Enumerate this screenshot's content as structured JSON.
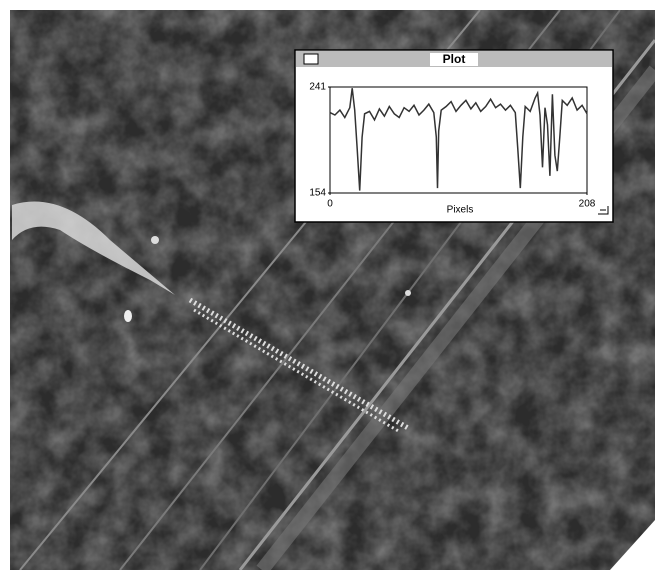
{
  "window": {
    "title": "Plot"
  },
  "chart_data": {
    "type": "line",
    "x_label": "Pixels",
    "x": [
      0,
      4,
      8,
      12,
      16,
      18,
      20,
      22,
      24,
      26,
      28,
      32,
      36,
      40,
      44,
      48,
      52,
      56,
      60,
      64,
      68,
      72,
      76,
      80,
      84,
      86,
      87,
      88,
      90,
      94,
      98,
      102,
      106,
      110,
      114,
      118,
      122,
      126,
      130,
      134,
      138,
      142,
      146,
      150,
      152,
      154,
      156,
      158,
      162,
      166,
      168,
      170,
      172,
      174,
      176,
      178,
      180,
      182,
      184,
      186,
      188,
      192,
      196,
      200,
      204,
      208
    ],
    "values": [
      220,
      218,
      222,
      216,
      224,
      240,
      222,
      190,
      156,
      200,
      219,
      221,
      214,
      223,
      217,
      225,
      219,
      216,
      224,
      221,
      226,
      218,
      222,
      227,
      220,
      200,
      158,
      205,
      222,
      225,
      229,
      221,
      226,
      230,
      223,
      228,
      221,
      225,
      231,
      224,
      227,
      222,
      226,
      220,
      190,
      158,
      200,
      225,
      221,
      232,
      236,
      218,
      175,
      224,
      210,
      168,
      235,
      185,
      172,
      200,
      230,
      226,
      232,
      222,
      226,
      219
    ],
    "color": "#333333",
    "xlim": [
      0,
      208
    ],
    "xticks": [
      0,
      208
    ],
    "ylim": [
      154,
      241
    ],
    "yticks": [
      241,
      154
    ]
  }
}
